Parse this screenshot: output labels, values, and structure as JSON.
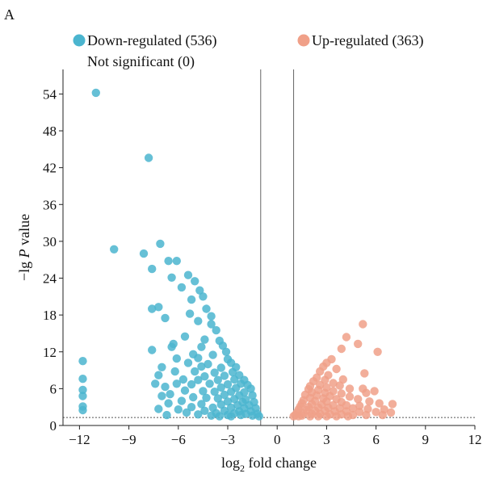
{
  "panel_label": "A",
  "colors": {
    "down": "#4bb5cf",
    "up": "#f0a088",
    "axis": "#222222",
    "threshold": "#555555"
  },
  "chart_data": {
    "type": "scatter",
    "title": "",
    "xlabel": {
      "prefix": "log",
      "subscript": "2",
      "suffix": " fold change"
    },
    "ylabel": {
      "prefix": "−lg ",
      "italic": "P",
      "suffix": " value"
    },
    "xlim": [
      -13,
      12
    ],
    "ylim": [
      0,
      58
    ],
    "xticks": [
      -12,
      -9,
      -6,
      -3,
      0,
      3,
      6,
      9,
      12
    ],
    "xtick_labels": [
      "−12",
      "−9",
      "−6",
      "−3",
      "0",
      "3",
      "6",
      "9",
      "12"
    ],
    "yticks": [
      0,
      6,
      12,
      18,
      24,
      30,
      36,
      42,
      48,
      54
    ],
    "ytick_labels": [
      "0",
      "6",
      "12",
      "18",
      "24",
      "30",
      "36",
      "42",
      "48",
      "54"
    ],
    "threshold_x": [
      -1,
      1
    ],
    "threshold_y": 1.3,
    "grid": false,
    "legend": {
      "placement": "top"
    },
    "series": [
      {
        "name": "Down-regulated (536)",
        "color": "#4bb5cf",
        "points": [
          [
            -11,
            54.2
          ],
          [
            -7.8,
            43.6
          ],
          [
            -9.9,
            28.7
          ],
          [
            -8.1,
            28.0
          ],
          [
            -7.1,
            29.6
          ],
          [
            -6.6,
            26.8
          ],
          [
            -6.1,
            26.8
          ],
          [
            -7.6,
            25.5
          ],
          [
            -6.4,
            24.1
          ],
          [
            -5.4,
            24.5
          ],
          [
            -5.0,
            23.5
          ],
          [
            -5.8,
            22.5
          ],
          [
            -4.7,
            22.0
          ],
          [
            -4.5,
            21.0
          ],
          [
            -5.2,
            20.5
          ],
          [
            -7.6,
            19.0
          ],
          [
            -7.2,
            19.3
          ],
          [
            -4.3,
            19.0
          ],
          [
            -5.3,
            18.2
          ],
          [
            -4.0,
            17.8
          ],
          [
            -6.8,
            17.5
          ],
          [
            -4.8,
            17.0
          ],
          [
            -4.0,
            16.5
          ],
          [
            -3.7,
            15.5
          ],
          [
            -5.6,
            14.5
          ],
          [
            -4.4,
            14.0
          ],
          [
            -3.5,
            13.8
          ],
          [
            -6.3,
            13.3
          ],
          [
            -3.3,
            13.0
          ],
          [
            -7.6,
            12.3
          ],
          [
            -6.4,
            12.8
          ],
          [
            -4.6,
            12.8
          ],
          [
            -5.1,
            11.6
          ],
          [
            -3.9,
            11.5
          ],
          [
            -3.1,
            12.0
          ],
          [
            -4.8,
            11.0
          ],
          [
            -6.1,
            10.9
          ],
          [
            -3.0,
            10.8
          ],
          [
            -11.8,
            10.5
          ],
          [
            -5.4,
            10.2
          ],
          [
            -4.2,
            10.0
          ],
          [
            -2.8,
            10.2
          ],
          [
            -7.0,
            9.5
          ],
          [
            -4.6,
            9.6
          ],
          [
            -3.4,
            9.4
          ],
          [
            -2.5,
            9.5
          ],
          [
            -6.2,
            8.8
          ],
          [
            -5.0,
            8.8
          ],
          [
            -3.8,
            8.6
          ],
          [
            -2.7,
            8.7
          ],
          [
            -7.2,
            8.2
          ],
          [
            -4.4,
            8.0
          ],
          [
            -3.2,
            8.1
          ],
          [
            -2.3,
            8.2
          ],
          [
            -11.8,
            7.6
          ],
          [
            -5.7,
            7.5
          ],
          [
            -4.8,
            7.4
          ],
          [
            -3.6,
            7.4
          ],
          [
            -2.6,
            7.5
          ],
          [
            -2.0,
            7.4
          ],
          [
            -7.4,
            6.8
          ],
          [
            -6.1,
            6.8
          ],
          [
            -5.2,
            6.7
          ],
          [
            -4.1,
            6.8
          ],
          [
            -3.0,
            6.7
          ],
          [
            -2.2,
            6.8
          ],
          [
            -1.8,
            6.6
          ],
          [
            -6.8,
            6.3
          ],
          [
            -3.4,
            6.2
          ],
          [
            -2.5,
            6.1
          ],
          [
            -1.6,
            6.0
          ],
          [
            -11.8,
            5.8
          ],
          [
            -5.6,
            5.7
          ],
          [
            -4.5,
            5.6
          ],
          [
            -3.8,
            5.5
          ],
          [
            -2.8,
            5.5
          ],
          [
            -2.0,
            5.4
          ],
          [
            -6.5,
            5.1
          ],
          [
            -3.2,
            5.0
          ],
          [
            -2.3,
            4.9
          ],
          [
            -1.5,
            4.9
          ],
          [
            -11.8,
            4.8
          ],
          [
            -7.0,
            4.8
          ],
          [
            -5.1,
            4.6
          ],
          [
            -4.3,
            4.5
          ],
          [
            -3.6,
            4.4
          ],
          [
            -2.6,
            4.3
          ],
          [
            -1.9,
            4.2
          ],
          [
            -5.8,
            4.0
          ],
          [
            -3.0,
            3.9
          ],
          [
            -2.1,
            3.8
          ],
          [
            -1.4,
            3.8
          ],
          [
            -6.6,
            3.6
          ],
          [
            -4.6,
            3.5
          ],
          [
            -3.4,
            3.4
          ],
          [
            -2.4,
            3.3
          ],
          [
            -1.7,
            3.3
          ],
          [
            -11.8,
            3.1
          ],
          [
            -5.2,
            3.0
          ],
          [
            -3.9,
            2.9
          ],
          [
            -2.8,
            2.9
          ],
          [
            -2.0,
            2.8
          ],
          [
            -1.3,
            2.8
          ],
          [
            -7.2,
            2.7
          ],
          [
            -11.8,
            2.5
          ],
          [
            -6.0,
            2.6
          ],
          [
            -4.4,
            2.4
          ],
          [
            -3.2,
            2.4
          ],
          [
            -2.3,
            2.3
          ],
          [
            -1.6,
            2.3
          ],
          [
            -5.5,
            2.1
          ],
          [
            -3.7,
            2.0
          ],
          [
            -2.6,
            2.0
          ],
          [
            -1.9,
            1.9
          ],
          [
            -1.2,
            1.9
          ],
          [
            -4.8,
            1.8
          ],
          [
            -3.0,
            1.7
          ],
          [
            -2.2,
            1.7
          ],
          [
            -1.5,
            1.6
          ],
          [
            -4.0,
            1.6
          ],
          [
            -6.7,
            1.7
          ],
          [
            -2.8,
            1.5
          ],
          [
            -1.1,
            1.5
          ],
          [
            -3.5,
            1.5
          ]
        ]
      },
      {
        "name": "Up-regulated (363)",
        "color": "#f0a088",
        "points": [
          [
            5.2,
            16.5
          ],
          [
            4.2,
            14.4
          ],
          [
            4.9,
            13.3
          ],
          [
            3.9,
            12.5
          ],
          [
            6.1,
            12.0
          ],
          [
            3.3,
            10.8
          ],
          [
            3.0,
            10.2
          ],
          [
            2.8,
            9.6
          ],
          [
            3.6,
            9.2
          ],
          [
            2.6,
            8.8
          ],
          [
            5.3,
            8.5
          ],
          [
            3.1,
            8.2
          ],
          [
            2.4,
            7.8
          ],
          [
            2.9,
            7.4
          ],
          [
            4.0,
            7.5
          ],
          [
            2.2,
            7.2
          ],
          [
            3.4,
            6.9
          ],
          [
            2.6,
            6.6
          ],
          [
            3.8,
            6.5
          ],
          [
            2.0,
            6.4
          ],
          [
            3.0,
            6.2
          ],
          [
            4.4,
            6.0
          ],
          [
            5.2,
            6.0
          ],
          [
            1.9,
            5.9
          ],
          [
            2.5,
            5.8
          ],
          [
            3.4,
            5.6
          ],
          [
            5.9,
            5.6
          ],
          [
            2.1,
            5.4
          ],
          [
            2.9,
            5.3
          ],
          [
            3.9,
            5.2
          ],
          [
            5.4,
            5.3
          ],
          [
            1.7,
            5.0
          ],
          [
            2.4,
            4.9
          ],
          [
            3.2,
            4.8
          ],
          [
            4.4,
            4.7
          ],
          [
            2.0,
            4.5
          ],
          [
            2.8,
            4.4
          ],
          [
            3.6,
            4.3
          ],
          [
            4.9,
            4.3
          ],
          [
            1.6,
            4.1
          ],
          [
            2.3,
            4.0
          ],
          [
            3.0,
            3.9
          ],
          [
            3.9,
            3.8
          ],
          [
            5.6,
            3.9
          ],
          [
            6.2,
            3.6
          ],
          [
            7.0,
            3.5
          ],
          [
            1.5,
            3.6
          ],
          [
            2.1,
            3.5
          ],
          [
            2.7,
            3.4
          ],
          [
            3.4,
            3.3
          ],
          [
            4.2,
            3.3
          ],
          [
            5.0,
            3.2
          ],
          [
            1.4,
            3.1
          ],
          [
            1.9,
            3.0
          ],
          [
            2.5,
            2.9
          ],
          [
            3.1,
            2.9
          ],
          [
            3.8,
            2.8
          ],
          [
            4.6,
            2.8
          ],
          [
            5.5,
            2.7
          ],
          [
            6.5,
            2.6
          ],
          [
            1.3,
            2.6
          ],
          [
            1.8,
            2.5
          ],
          [
            2.3,
            2.4
          ],
          [
            2.9,
            2.4
          ],
          [
            3.5,
            2.3
          ],
          [
            4.2,
            2.3
          ],
          [
            5.0,
            2.2
          ],
          [
            6.0,
            2.2
          ],
          [
            6.9,
            2.1
          ],
          [
            1.2,
            2.1
          ],
          [
            1.6,
            2.0
          ],
          [
            2.1,
            1.9
          ],
          [
            2.6,
            1.9
          ],
          [
            3.2,
            1.8
          ],
          [
            3.9,
            1.8
          ],
          [
            4.6,
            1.7
          ],
          [
            5.4,
            1.7
          ],
          [
            1.1,
            1.7
          ],
          [
            1.5,
            1.6
          ],
          [
            2.0,
            1.5
          ],
          [
            2.5,
            1.5
          ],
          [
            3.0,
            1.5
          ],
          [
            3.6,
            1.5
          ],
          [
            4.3,
            1.5
          ],
          [
            6.4,
            1.7
          ],
          [
            1.0,
            1.5
          ],
          [
            1.3,
            1.5
          ]
        ]
      },
      {
        "name": "Not significant (0)",
        "color": "#b5b5b5",
        "points": []
      }
    ]
  }
}
